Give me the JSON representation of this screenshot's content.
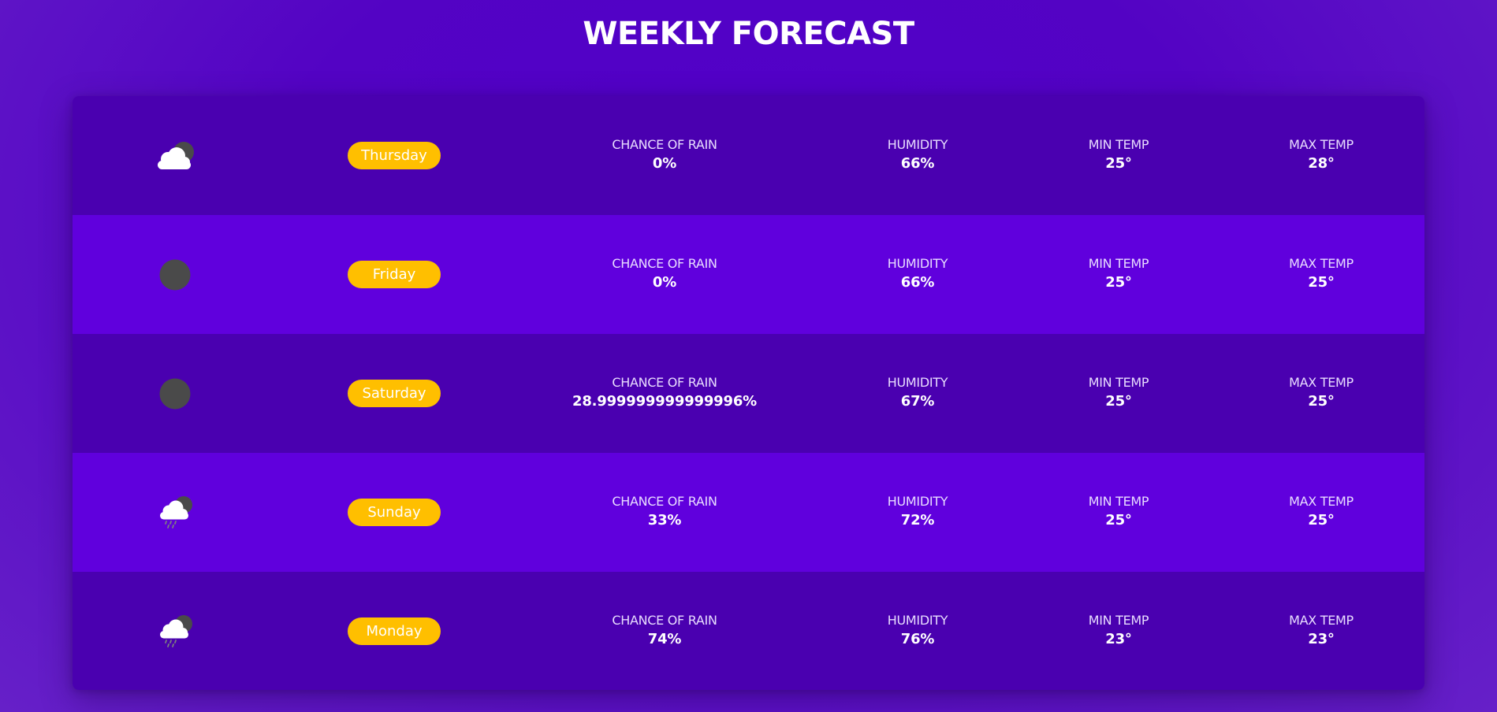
{
  "title": "WEEKLY FORECAST",
  "labels": {
    "rain": "CHANCE OF RAIN",
    "humidity": "HUMIDITY",
    "min_temp": "MIN TEMP",
    "max_temp": "MAX TEMP"
  },
  "colors": {
    "background": "#5303c4",
    "row_dark": "#4a00b0",
    "row_light": "#6000dd",
    "day_pill": "#ffbf00"
  },
  "days": [
    {
      "icon": "cloudy-night-icon",
      "day": "Thursday",
      "rain": "0%",
      "humidity": "66%",
      "min": "25°",
      "max": "28°"
    },
    {
      "icon": "clear-night-icon",
      "day": "Friday",
      "rain": "0%",
      "humidity": "66%",
      "min": "25°",
      "max": "25°"
    },
    {
      "icon": "clear-night-icon",
      "day": "Saturday",
      "rain": "28.999999999999996%",
      "humidity": "67%",
      "min": "25°",
      "max": "25°"
    },
    {
      "icon": "rainy-night-icon",
      "day": "Sunday",
      "rain": "33%",
      "humidity": "72%",
      "min": "25°",
      "max": "25°"
    },
    {
      "icon": "rainy-night-icon",
      "day": "Monday",
      "rain": "74%",
      "humidity": "76%",
      "min": "23°",
      "max": "23°"
    }
  ]
}
